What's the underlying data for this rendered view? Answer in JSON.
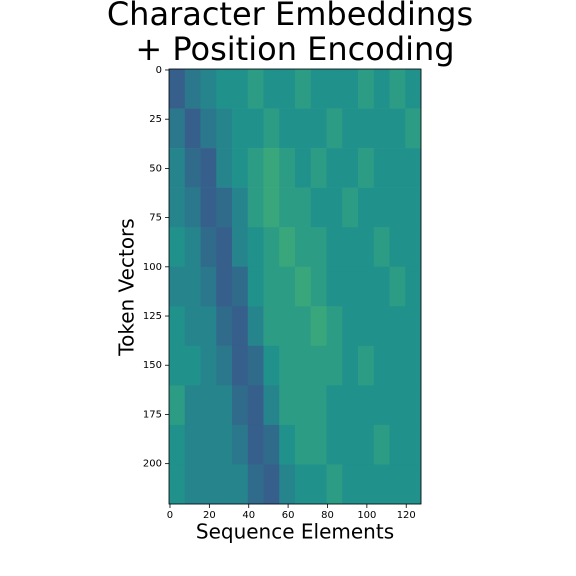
{
  "chart_data": {
    "type": "heatmap",
    "title_lines": [
      "Character Embeddings",
      "+ Position Encoding"
    ],
    "xlabel": "Sequence Elements",
    "ylabel": "Token Vectors",
    "colormap": "viridis",
    "xlim": [
      -0.5,
      127.5
    ],
    "ylim": [
      220.5,
      -0.5
    ],
    "xticks": [
      0,
      20,
      40,
      60,
      80,
      100,
      120
    ],
    "yticks": [
      0,
      25,
      50,
      75,
      100,
      125,
      150,
      175,
      200
    ],
    "z": [
      [
        0.3,
        0.4,
        0.45,
        0.5,
        0.5,
        0.55,
        0.5,
        0.5,
        0.55,
        0.5,
        0.5,
        0.5,
        0.55,
        0.5,
        0.55,
        0.5
      ],
      [
        0.4,
        0.3,
        0.4,
        0.45,
        0.5,
        0.5,
        0.55,
        0.5,
        0.5,
        0.5,
        0.55,
        0.5,
        0.5,
        0.5,
        0.5,
        0.55
      ],
      [
        0.45,
        0.35,
        0.3,
        0.45,
        0.5,
        0.55,
        0.6,
        0.55,
        0.5,
        0.55,
        0.5,
        0.5,
        0.55,
        0.5,
        0.5,
        0.5
      ],
      [
        0.45,
        0.4,
        0.3,
        0.35,
        0.45,
        0.55,
        0.6,
        0.55,
        0.55,
        0.5,
        0.5,
        0.55,
        0.5,
        0.5,
        0.5,
        0.5
      ],
      [
        0.5,
        0.45,
        0.35,
        0.3,
        0.45,
        0.5,
        0.55,
        0.6,
        0.55,
        0.55,
        0.5,
        0.5,
        0.5,
        0.55,
        0.5,
        0.5
      ],
      [
        0.45,
        0.45,
        0.4,
        0.3,
        0.35,
        0.5,
        0.55,
        0.55,
        0.6,
        0.55,
        0.5,
        0.5,
        0.5,
        0.5,
        0.55,
        0.5
      ],
      [
        0.5,
        0.45,
        0.45,
        0.35,
        0.3,
        0.45,
        0.55,
        0.55,
        0.55,
        0.6,
        0.55,
        0.5,
        0.5,
        0.5,
        0.5,
        0.5
      ],
      [
        0.5,
        0.5,
        0.45,
        0.4,
        0.3,
        0.35,
        0.5,
        0.55,
        0.55,
        0.55,
        0.55,
        0.5,
        0.55,
        0.5,
        0.5,
        0.5
      ],
      [
        0.55,
        0.45,
        0.45,
        0.45,
        0.35,
        0.3,
        0.45,
        0.55,
        0.55,
        0.55,
        0.5,
        0.5,
        0.5,
        0.5,
        0.5,
        0.5
      ],
      [
        0.5,
        0.45,
        0.45,
        0.45,
        0.4,
        0.3,
        0.35,
        0.5,
        0.55,
        0.55,
        0.5,
        0.5,
        0.5,
        0.55,
        0.5,
        0.5
      ],
      [
        0.5,
        0.45,
        0.45,
        0.45,
        0.45,
        0.35,
        0.3,
        0.45,
        0.5,
        0.5,
        0.55,
        0.5,
        0.5,
        0.5,
        0.5,
        0.5
      ]
    ]
  }
}
